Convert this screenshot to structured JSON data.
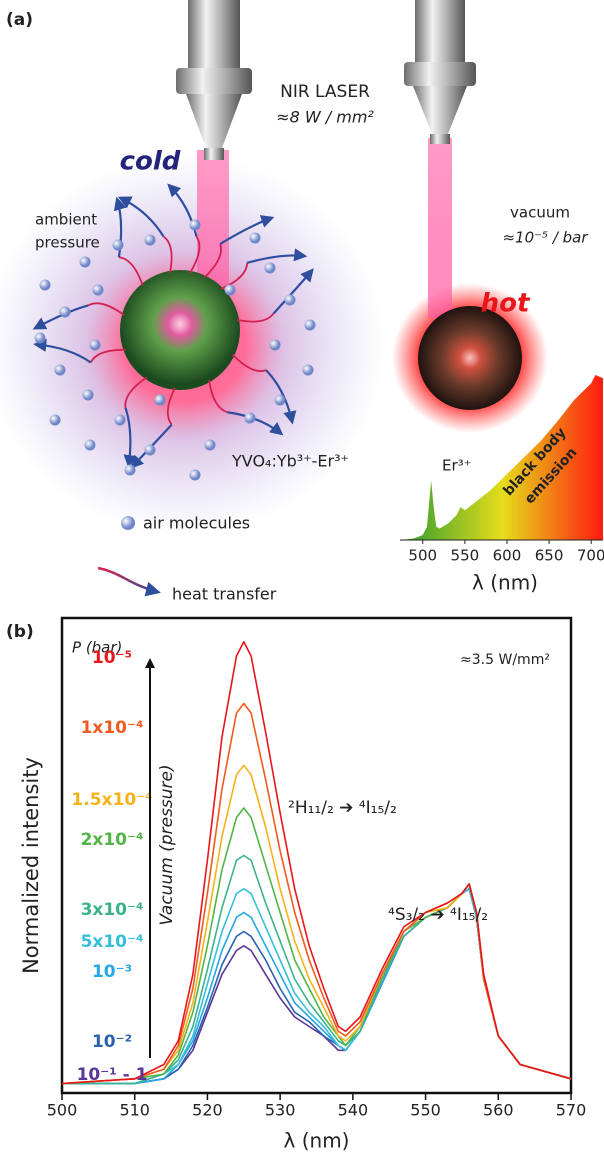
{
  "diagram": {
    "panel_a_label": "(a)",
    "panel_b_label": "(b)",
    "laser": "NIR LASER",
    "laser_power": "≈8 W / mm²",
    "cold": "cold",
    "hot": "hot",
    "ambient": [
      "ambient",
      "pressure"
    ],
    "vacuum": "vacuum",
    "vacuum_pressure": "≈10⁻⁵ / bar",
    "material": "YVO₄:Yb³⁺-Er³⁺",
    "legend_air": "air molecules",
    "legend_heat": "heat transfer"
  },
  "chart_data": [
    {
      "type": "area",
      "x": [
        475,
        490,
        500,
        505,
        510,
        513,
        516,
        520,
        530,
        540,
        545,
        550,
        560,
        580,
        600,
        620,
        640,
        660,
        680,
        700,
        705,
        714
      ],
      "values": [
        0,
        0.01,
        0.03,
        0.08,
        0.36,
        0.2,
        0.08,
        0.07,
        0.1,
        0.15,
        0.2,
        0.18,
        0.22,
        0.3,
        0.4,
        0.5,
        0.6,
        0.72,
        0.85,
        0.95,
        1,
        0.98
      ],
      "colors": [
        "#2e9b2e",
        "#e6dd1c",
        "#ff1a10"
      ],
      "xlim": [
        473,
        714
      ],
      "ylim": [
        0,
        1
      ],
      "xticks": [
        500,
        550,
        600,
        650,
        700
      ],
      "xlabel": "λ (nm)",
      "annotations": [
        "Er³⁺",
        "black body",
        "emission"
      ]
    },
    {
      "type": "line",
      "xlabel": "λ (nm)",
      "ylabel": "Normalized intensity",
      "legend_title": "P (bar)",
      "arrow_label": "Vacuum (pressure)",
      "annotations": [
        "≈3.5 W/mm²",
        "²H₁₁/₂ ➔ ⁴I₁₅/₂",
        "⁴S₃/₂ ➔ ⁴I₁₅/₂"
      ],
      "xlim": [
        500,
        570
      ],
      "ylim": [
        0,
        1
      ],
      "xticks": [
        500,
        510,
        520,
        530,
        540,
        550,
        560,
        570
      ],
      "x": [
        500,
        510,
        514,
        516,
        518,
        520,
        522,
        524,
        525,
        526,
        528,
        530,
        532,
        534,
        536,
        538,
        539,
        541,
        544,
        547,
        550,
        553,
        555,
        556,
        557,
        558,
        560,
        563,
        570
      ],
      "series": [
        {
          "name": "10⁻⁵",
          "color": "#e8151b",
          "values": [
            0.02,
            0.03,
            0.06,
            0.11,
            0.25,
            0.49,
            0.75,
            0.92,
            0.95,
            0.92,
            0.76,
            0.59,
            0.43,
            0.31,
            0.22,
            0.14,
            0.13,
            0.16,
            0.26,
            0.35,
            0.38,
            0.4,
            0.42,
            0.44,
            0.38,
            0.25,
            0.12,
            0.06,
            0.03
          ]
        },
        {
          "name": "1x10⁻⁴",
          "color": "#f05a1e",
          "values": [
            0.02,
            0.03,
            0.05,
            0.1,
            0.22,
            0.42,
            0.64,
            0.8,
            0.82,
            0.8,
            0.66,
            0.51,
            0.38,
            0.28,
            0.2,
            0.13,
            0.12,
            0.15,
            0.25,
            0.34,
            0.38,
            0.4,
            0.42,
            0.44,
            0.38,
            0.24,
            0.12,
            0.06,
            0.03
          ]
        },
        {
          "name": "1.5x10⁻⁴",
          "color": "#f5b21a",
          "values": [
            0.02,
            0.03,
            0.05,
            0.09,
            0.19,
            0.36,
            0.54,
            0.67,
            0.69,
            0.67,
            0.56,
            0.43,
            0.32,
            0.24,
            0.18,
            0.12,
            0.11,
            0.14,
            0.25,
            0.34,
            0.38,
            0.39,
            0.42,
            0.44,
            0.38,
            0.24,
            0.12,
            0.06,
            0.03
          ]
        },
        {
          "name": "2x10⁻⁴",
          "color": "#52b447",
          "values": [
            0.02,
            0.03,
            0.04,
            0.08,
            0.17,
            0.31,
            0.47,
            0.58,
            0.6,
            0.58,
            0.48,
            0.38,
            0.28,
            0.22,
            0.16,
            0.12,
            0.1,
            0.14,
            0.24,
            0.34,
            0.37,
            0.39,
            0.42,
            0.44,
            0.38,
            0.24,
            0.12,
            0.06,
            0.03
          ]
        },
        {
          "name": "3x10⁻⁴",
          "color": "#3cb28c",
          "values": [
            0.02,
            0.02,
            0.04,
            0.07,
            0.14,
            0.26,
            0.39,
            0.49,
            0.5,
            0.49,
            0.4,
            0.32,
            0.24,
            0.19,
            0.15,
            0.11,
            0.1,
            0.13,
            0.24,
            0.33,
            0.37,
            0.39,
            0.42,
            0.44,
            0.38,
            0.24,
            0.12,
            0.06,
            0.03
          ]
        },
        {
          "name": "5x10⁻⁴",
          "color": "#36bfd8",
          "values": [
            0.02,
            0.02,
            0.04,
            0.06,
            0.12,
            0.23,
            0.34,
            0.42,
            0.43,
            0.42,
            0.35,
            0.28,
            0.21,
            0.17,
            0.14,
            0.1,
            0.09,
            0.13,
            0.24,
            0.33,
            0.37,
            0.39,
            0.42,
            0.43,
            0.37,
            0.24,
            0.12,
            0.06,
            0.03
          ]
        },
        {
          "name": "10⁻³",
          "color": "#25a7e5",
          "values": [
            0.02,
            0.02,
            0.03,
            0.06,
            0.11,
            0.2,
            0.3,
            0.37,
            0.38,
            0.37,
            0.31,
            0.25,
            0.19,
            0.16,
            0.13,
            0.1,
            0.09,
            0.13,
            0.23,
            0.33,
            0.37,
            0.39,
            0.42,
            0.43,
            0.37,
            0.24,
            0.12,
            0.06,
            0.03
          ]
        },
        {
          "name": "10⁻²",
          "color": "#2c62ad",
          "values": [
            0.02,
            0.02,
            0.03,
            0.05,
            0.1,
            0.18,
            0.27,
            0.33,
            0.34,
            0.33,
            0.28,
            0.22,
            0.17,
            0.15,
            0.12,
            0.1,
            0.09,
            0.13,
            0.23,
            0.33,
            0.37,
            0.39,
            0.42,
            0.43,
            0.37,
            0.24,
            0.12,
            0.06,
            0.03
          ]
        },
        {
          "name": "10⁻¹ - 1",
          "color": "#5a3696",
          "values": [
            0.02,
            0.02,
            0.03,
            0.05,
            0.09,
            0.17,
            0.25,
            0.3,
            0.31,
            0.3,
            0.25,
            0.2,
            0.16,
            0.14,
            0.12,
            0.09,
            0.09,
            0.13,
            0.23,
            0.33,
            0.37,
            0.39,
            0.42,
            0.43,
            0.37,
            0.24,
            0.12,
            0.06,
            0.03
          ]
        }
      ]
    }
  ]
}
